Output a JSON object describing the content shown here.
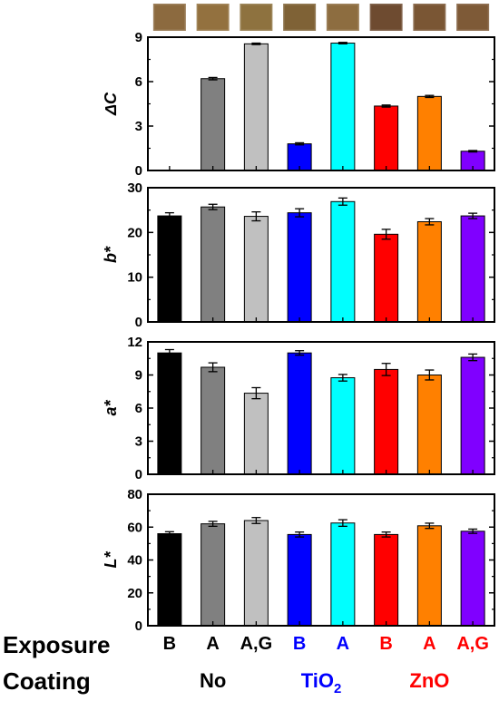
{
  "chart_data": [
    {
      "type": "bar",
      "ylabel": "ΔC",
      "ylim": [
        0,
        9
      ],
      "yticks": [
        "0",
        "3",
        "6",
        "9"
      ],
      "values": [
        0,
        6.2,
        8.55,
        1.8,
        8.6,
        4.35,
        5.0,
        1.3
      ],
      "errors": [
        0,
        0.08,
        0.05,
        0.07,
        0.05,
        0.07,
        0.07,
        0.05
      ]
    },
    {
      "type": "bar",
      "ylabel": "b*",
      "ylim": [
        0,
        30
      ],
      "yticks": [
        "0",
        "10",
        "20",
        "30"
      ],
      "values": [
        23.7,
        25.7,
        23.6,
        24.4,
        26.9,
        19.6,
        22.4,
        23.7
      ],
      "errors": [
        0.7,
        0.6,
        1.0,
        0.9,
        0.8,
        1.1,
        0.7,
        0.6
      ]
    },
    {
      "type": "bar",
      "ylabel": "a*",
      "ylim": [
        0,
        12
      ],
      "yticks": [
        "0",
        "3",
        "6",
        "9",
        "12"
      ],
      "values": [
        11.0,
        9.7,
        7.35,
        11.0,
        8.75,
        9.5,
        9.0,
        10.6
      ],
      "errors": [
        0.3,
        0.4,
        0.5,
        0.2,
        0.3,
        0.55,
        0.45,
        0.3
      ]
    },
    {
      "type": "bar",
      "ylabel": "L*",
      "ylim": [
        0,
        80
      ],
      "yticks": [
        "0",
        "20",
        "40",
        "60",
        "80"
      ],
      "values": [
        56.0,
        62.0,
        64.0,
        55.5,
        62.5,
        55.5,
        60.8,
        57.5
      ],
      "errors": [
        1.2,
        1.5,
        1.8,
        1.5,
        2.0,
        1.5,
        1.6,
        1.3
      ]
    }
  ],
  "bar_colors": [
    "#000000",
    "#808080",
    "#c0c0c0",
    "#0000ff",
    "#00ffff",
    "#ff0000",
    "#ff8000",
    "#8000ff"
  ],
  "swatch_colors": [
    "#8c6a3f",
    "#93713f",
    "#8e723f",
    "#7f6236",
    "#8d6d40",
    "#6e4b30",
    "#7a5634",
    "#7e5a37"
  ],
  "rows": {
    "exposure_label": "Exposure",
    "coating_label": "Coating",
    "exposure": [
      {
        "text": "B",
        "color": "#000000"
      },
      {
        "text": "A",
        "color": "#000000"
      },
      {
        "text": "A,G",
        "color": "#000000"
      },
      {
        "text": "B",
        "color": "#0000ff"
      },
      {
        "text": "A",
        "color": "#0000ff"
      },
      {
        "text": "B",
        "color": "#ff0000"
      },
      {
        "text": "A",
        "color": "#ff0000"
      },
      {
        "text": "A,G",
        "color": "#ff0000"
      }
    ],
    "coating": [
      {
        "text": "No",
        "color": "#000000"
      },
      {
        "text": "TiO",
        "sub": "2",
        "color": "#0000ff"
      },
      {
        "text": "ZnO",
        "color": "#ff0000"
      }
    ]
  }
}
